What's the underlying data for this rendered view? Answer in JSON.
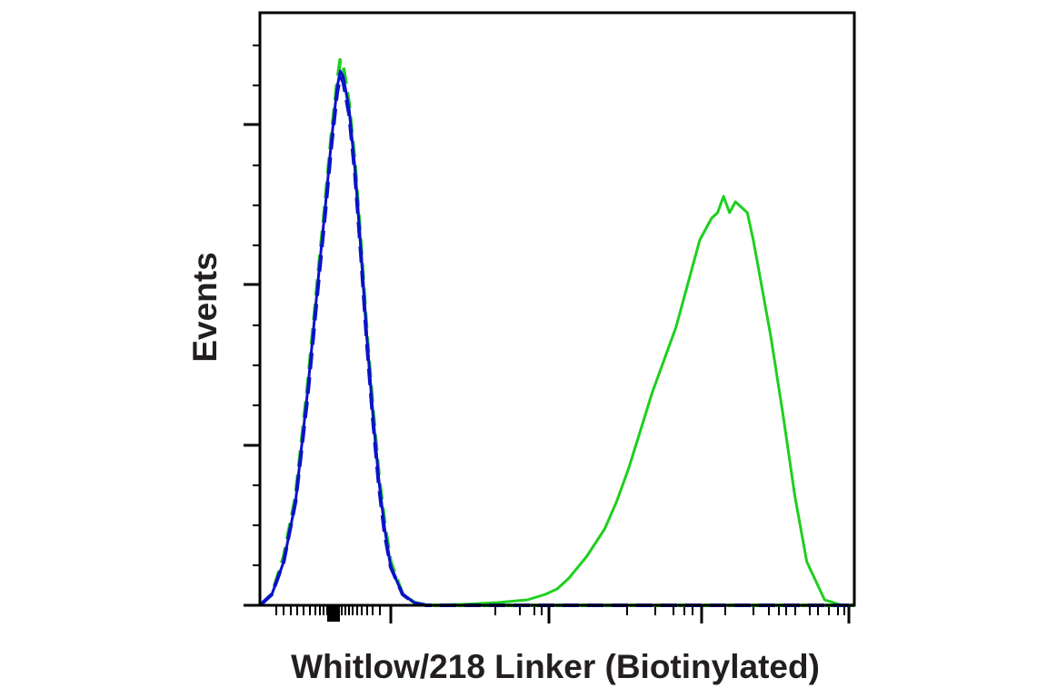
{
  "chart_data": {
    "type": "line",
    "title": "",
    "xlabel": "Whitlow/218 Linker (Biotinylated)",
    "ylabel": "Events",
    "x_scale": "log",
    "xlim": [
      0,
      1
    ],
    "ylim": [
      0,
      1
    ],
    "x_tick_labels": [],
    "y_tick_labels": [],
    "legend": "none",
    "grid": false,
    "series": [
      {
        "color": "#1fcf1f",
        "style": "solid",
        "x": [
          0.02,
          0.05,
          0.08,
          0.1,
          0.12,
          0.13,
          0.14,
          0.15,
          0.16,
          0.17,
          0.18,
          0.2,
          0.22,
          0.24,
          0.28,
          0.35,
          0.4,
          0.45,
          0.48,
          0.5,
          0.52,
          0.55,
          0.58,
          0.6,
          0.62,
          0.64,
          0.66,
          0.68,
          0.7,
          0.72,
          0.73,
          0.74,
          0.75,
          0.76,
          0.77,
          0.78,
          0.79,
          0.8,
          0.81,
          0.82,
          0.83,
          0.84,
          0.86,
          0.88,
          0.9,
          0.92,
          0.95,
          0.98
        ],
        "y": [
          0,
          0,
          0,
          0,
          0,
          0,
          0,
          0,
          0,
          0,
          0,
          0,
          0,
          0,
          0,
          0.002,
          0.005,
          0.01,
          0.02,
          0.03,
          0.05,
          0.09,
          0.14,
          0.19,
          0.25,
          0.32,
          0.39,
          0.45,
          0.51,
          0.59,
          0.63,
          0.67,
          0.69,
          0.71,
          0.72,
          0.75,
          0.72,
          0.74,
          0.73,
          0.72,
          0.67,
          0.61,
          0.49,
          0.35,
          0.2,
          0.08,
          0.01,
          0
        ]
      },
      {
        "color": "#1fcf1f",
        "style": "dashed",
        "x": [
          0.0,
          0.02,
          0.04,
          0.06,
          0.08,
          0.1,
          0.11,
          0.12,
          0.13,
          0.135,
          0.14,
          0.15,
          0.16,
          0.17,
          0.18,
          0.19,
          0.2,
          0.21,
          0.22,
          0.24,
          0.26,
          0.28,
          0.32,
          0.4,
          0.5,
          0.6,
          0.7,
          0.8,
          0.9,
          1.0
        ],
        "y": [
          0,
          0.02,
          0.09,
          0.2,
          0.4,
          0.63,
          0.74,
          0.86,
          0.96,
          1.0,
          0.99,
          0.92,
          0.81,
          0.66,
          0.5,
          0.36,
          0.24,
          0.15,
          0.08,
          0.02,
          0.005,
          0,
          0,
          0,
          0,
          0,
          0,
          0,
          0,
          0
        ]
      },
      {
        "color": "#0a12c8",
        "style": "solid",
        "x": [
          0.0,
          0.02,
          0.04,
          0.06,
          0.08,
          0.1,
          0.11,
          0.12,
          0.13,
          0.135,
          0.14,
          0.15,
          0.16,
          0.17,
          0.18,
          0.19,
          0.2,
          0.21,
          0.22,
          0.24,
          0.26,
          0.28,
          0.32,
          0.4,
          0.5,
          0.6,
          0.7,
          0.8,
          0.9,
          1.0
        ],
        "y": [
          0,
          0.02,
          0.08,
          0.19,
          0.39,
          0.62,
          0.73,
          0.85,
          0.95,
          0.98,
          0.97,
          0.91,
          0.8,
          0.65,
          0.49,
          0.35,
          0.23,
          0.14,
          0.07,
          0.02,
          0.005,
          0,
          0,
          0,
          0,
          0,
          0,
          0,
          0,
          0
        ]
      },
      {
        "color": "#0a12c8",
        "style": "dashed",
        "x": [
          0.0,
          0.02,
          0.04,
          0.06,
          0.08,
          0.1,
          0.11,
          0.12,
          0.13,
          0.135,
          0.14,
          0.15,
          0.16,
          0.17,
          0.18,
          0.19,
          0.2,
          0.21,
          0.22,
          0.24,
          0.26,
          0.28,
          0.32,
          0.4,
          0.5,
          0.6,
          0.7,
          0.8,
          0.9,
          1.0
        ],
        "y": [
          0,
          0.02,
          0.08,
          0.19,
          0.38,
          0.61,
          0.72,
          0.84,
          0.94,
          0.97,
          0.96,
          0.9,
          0.79,
          0.64,
          0.48,
          0.34,
          0.22,
          0.13,
          0.07,
          0.02,
          0.004,
          0,
          0,
          0,
          0,
          0,
          0,
          0,
          0,
          0
        ]
      }
    ]
  }
}
